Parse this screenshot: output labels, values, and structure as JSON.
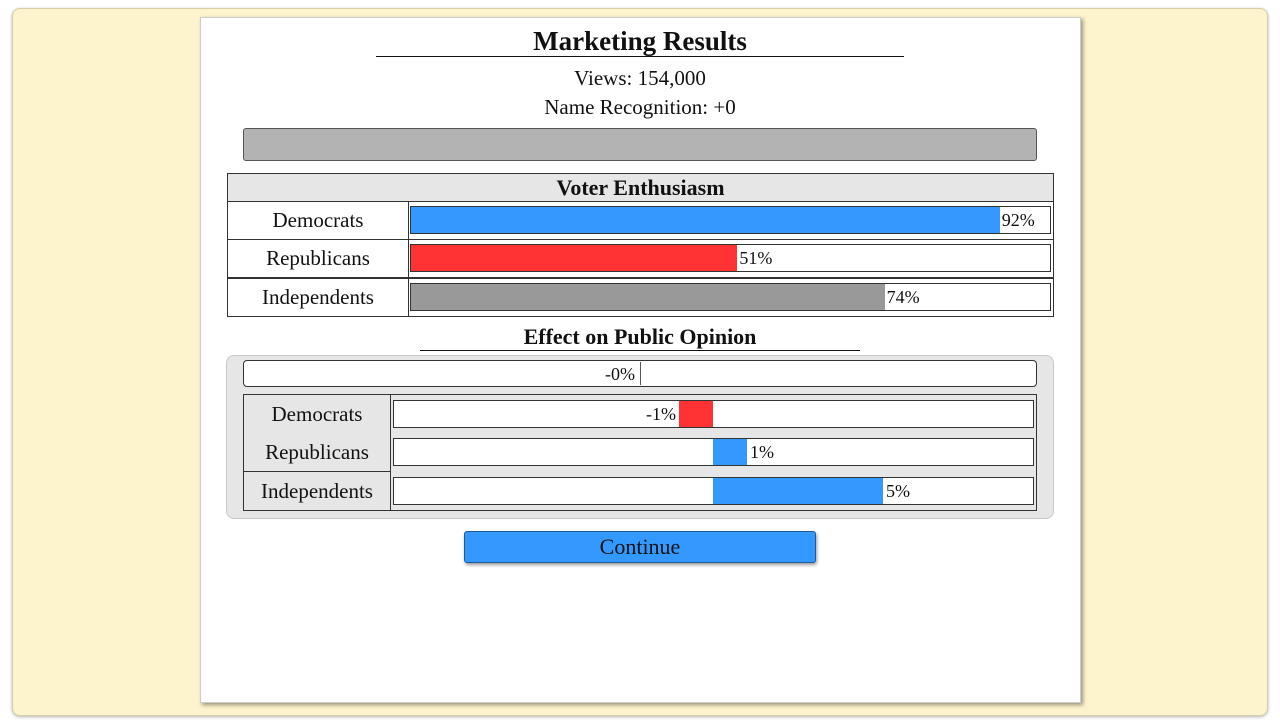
{
  "header": {
    "title": "Marketing Results",
    "views": "Views: 154,000",
    "name_recognition": "Name Recognition: +0"
  },
  "enthusiasm": {
    "title": "Voter Enthusiasm",
    "rows": [
      {
        "label": "Democrats",
        "value": 92,
        "value_label": "92%",
        "color": "#3399ff"
      },
      {
        "label": "Republicans",
        "value": 51,
        "value_label": "51%",
        "color": "#ff3333"
      },
      {
        "label": "Independents",
        "value": 74,
        "value_label": "74%",
        "color": "#999999"
      }
    ]
  },
  "opinion": {
    "title": "Effect on Public Opinion",
    "overall": {
      "value": 0,
      "value_label": "-0%"
    },
    "rows": [
      {
        "label": "Democrats",
        "value": -1,
        "value_label": "-1%"
      },
      {
        "label": "Republicans",
        "value": 1,
        "value_label": "1%"
      },
      {
        "label": "Independents",
        "value": 5,
        "value_label": "5%"
      }
    ],
    "positive_color": "#3399ff",
    "negative_color": "#ff3333"
  },
  "button": "Continue"
}
